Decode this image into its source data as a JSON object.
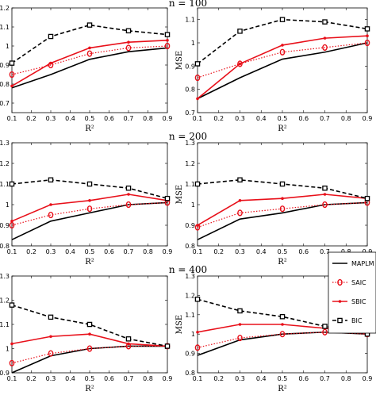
{
  "figure": {
    "rows": [
      {
        "title": "n = 100"
      },
      {
        "title": "n = 200"
      },
      {
        "title": "n = 400"
      }
    ]
  },
  "legend": {
    "placement": "right, between bottom-row panels",
    "entries": [
      {
        "key": "MAPLM",
        "label": "MAPLM",
        "color": "#000000",
        "style": "solid",
        "marker": "none"
      },
      {
        "key": "SAIC",
        "label": "SAIC",
        "color": "#e8101a",
        "style": "dotted",
        "marker": "circle"
      },
      {
        "key": "SBIC",
        "label": "SBIC",
        "color": "#e8101a",
        "style": "solid",
        "marker": "dot"
      },
      {
        "key": "BIC",
        "label": "BIC",
        "color": "#000000",
        "style": "dashed",
        "marker": "square"
      }
    ]
  },
  "chart_data": [
    {
      "type": "line",
      "row": 0,
      "col": 0,
      "title": "n = 100",
      "xlabel": "R²",
      "ylabel": "MSE",
      "x": [
        0.1,
        0.3,
        0.5,
        0.7,
        0.9
      ],
      "xlim": [
        0.1,
        0.9
      ],
      "ylim": [
        0.65,
        1.2
      ],
      "xticks": [
        "0.1",
        "0.2",
        "0.3",
        "0.4",
        "0.5",
        "0.6",
        "0.7",
        "0.8",
        "0.9"
      ],
      "yticks": [
        "0.7",
        "0.8",
        "0.9",
        "1",
        "1.1",
        "1.2"
      ],
      "series": [
        {
          "name": "MAPLM",
          "values": [
            0.78,
            0.85,
            0.93,
            0.97,
            0.99
          ]
        },
        {
          "name": "SAIC",
          "values": [
            0.85,
            0.9,
            0.96,
            0.99,
            1.0
          ]
        },
        {
          "name": "SBIC",
          "values": [
            0.79,
            0.91,
            0.99,
            1.02,
            1.03
          ]
        },
        {
          "name": "BIC",
          "values": [
            0.91,
            1.05,
            1.11,
            1.08,
            1.06
          ]
        }
      ]
    },
    {
      "type": "line",
      "row": 0,
      "col": 1,
      "title": "",
      "xlabel": "R²",
      "ylabel": "MSE",
      "x": [
        0.1,
        0.3,
        0.5,
        0.7,
        0.9
      ],
      "xlim": [
        0.1,
        0.9
      ],
      "ylim": [
        0.7,
        1.15
      ],
      "xticks": [
        "0.1",
        "0.2",
        "0.3",
        "0.4",
        "0.5",
        "0.6",
        "0.7",
        "0.8",
        "0.9"
      ],
      "yticks": [
        "0.7",
        "0.8",
        "0.9",
        "1",
        "1.1"
      ],
      "series": [
        {
          "name": "MAPLM",
          "values": [
            0.76,
            0.85,
            0.93,
            0.96,
            1.0
          ]
        },
        {
          "name": "SAIC",
          "values": [
            0.85,
            0.91,
            0.96,
            0.98,
            1.0
          ]
        },
        {
          "name": "SBIC",
          "values": [
            0.76,
            0.91,
            0.99,
            1.02,
            1.03
          ]
        },
        {
          "name": "BIC",
          "values": [
            0.91,
            1.05,
            1.1,
            1.09,
            1.06
          ]
        }
      ]
    },
    {
      "type": "line",
      "row": 1,
      "col": 0,
      "title": "n = 200",
      "xlabel": "R²",
      "ylabel": "MSE",
      "x": [
        0.1,
        0.3,
        0.5,
        0.7,
        0.9
      ],
      "xlim": [
        0.1,
        0.9
      ],
      "ylim": [
        0.8,
        1.3
      ],
      "xticks": [
        "0.1",
        "0.2",
        "0.3",
        "0.4",
        "0.5",
        "0.6",
        "0.7",
        "0.8",
        "0.9"
      ],
      "yticks": [
        "0.8",
        "0.9",
        "1",
        "1.1",
        "1.2",
        "1.3"
      ],
      "series": [
        {
          "name": "MAPLM",
          "values": [
            0.83,
            0.92,
            0.96,
            1.0,
            1.01
          ]
        },
        {
          "name": "SAIC",
          "values": [
            0.9,
            0.95,
            0.98,
            1.0,
            1.01
          ]
        },
        {
          "name": "SBIC",
          "values": [
            0.92,
            1.0,
            1.02,
            1.05,
            1.02
          ]
        },
        {
          "name": "BIC",
          "values": [
            1.1,
            1.12,
            1.1,
            1.08,
            1.03
          ]
        }
      ]
    },
    {
      "type": "line",
      "row": 1,
      "col": 1,
      "title": "",
      "xlabel": "R²",
      "ylabel": "MSE",
      "x": [
        0.1,
        0.3,
        0.5,
        0.7,
        0.9
      ],
      "xlim": [
        0.1,
        0.9
      ],
      "ylim": [
        0.8,
        1.3
      ],
      "xticks": [
        "0.1",
        "0.2",
        "0.3",
        "0.4",
        "0.5",
        "0.6",
        "0.7",
        "0.8",
        "0.9"
      ],
      "yticks": [
        "0.8",
        "0.9",
        "1",
        "1.1",
        "1.2",
        "1.3"
      ],
      "series": [
        {
          "name": "MAPLM",
          "values": [
            0.83,
            0.93,
            0.96,
            1.0,
            1.01
          ]
        },
        {
          "name": "SAIC",
          "values": [
            0.89,
            0.96,
            0.98,
            1.0,
            1.01
          ]
        },
        {
          "name": "SBIC",
          "values": [
            0.9,
            1.02,
            1.03,
            1.05,
            1.03
          ]
        },
        {
          "name": "BIC",
          "values": [
            1.1,
            1.12,
            1.1,
            1.08,
            1.03
          ]
        }
      ]
    },
    {
      "type": "line",
      "row": 2,
      "col": 0,
      "title": "n = 400",
      "xlabel": "R²",
      "ylabel": "MSE",
      "x": [
        0.1,
        0.3,
        0.5,
        0.7,
        0.9
      ],
      "xlim": [
        0.1,
        0.9
      ],
      "ylim": [
        0.9,
        1.3
      ],
      "xticks": [
        "0.1",
        "0.2",
        "0.3",
        "0.4",
        "0.5",
        "0.6",
        "0.7",
        "0.8",
        "0.9"
      ],
      "yticks": [
        "0.9",
        "1",
        "1.1",
        "1.2",
        "1.3"
      ],
      "series": [
        {
          "name": "MAPLM",
          "values": [
            0.9,
            0.97,
            1.0,
            1.01,
            1.01
          ]
        },
        {
          "name": "SAIC",
          "values": [
            0.94,
            0.98,
            1.0,
            1.01,
            1.01
          ]
        },
        {
          "name": "SBIC",
          "values": [
            1.02,
            1.05,
            1.06,
            1.02,
            1.01
          ]
        },
        {
          "name": "BIC",
          "values": [
            1.18,
            1.13,
            1.1,
            1.04,
            1.01
          ]
        }
      ]
    },
    {
      "type": "line",
      "row": 2,
      "col": 1,
      "title": "",
      "xlabel": "R²",
      "ylabel": "MSE",
      "x": [
        0.1,
        0.3,
        0.5,
        0.7,
        0.9
      ],
      "xlim": [
        0.1,
        0.9
      ],
      "ylim": [
        0.8,
        1.3
      ],
      "xticks": [
        "0.1",
        "0.2",
        "0.3",
        "0.4",
        "0.5",
        "0.6",
        "0.7",
        "0.8",
        "0.9"
      ],
      "yticks": [
        "0.8",
        "0.9",
        "1",
        "1.1",
        "1.2",
        "1.3"
      ],
      "series": [
        {
          "name": "MAPLM",
          "values": [
            0.89,
            0.97,
            1.0,
            1.01,
            1.0
          ]
        },
        {
          "name": "SAIC",
          "values": [
            0.93,
            0.98,
            1.0,
            1.01,
            1.0
          ]
        },
        {
          "name": "SBIC",
          "values": [
            1.01,
            1.05,
            1.05,
            1.03,
            1.0
          ]
        },
        {
          "name": "BIC",
          "values": [
            1.18,
            1.12,
            1.09,
            1.04,
            1.0
          ]
        }
      ]
    }
  ]
}
